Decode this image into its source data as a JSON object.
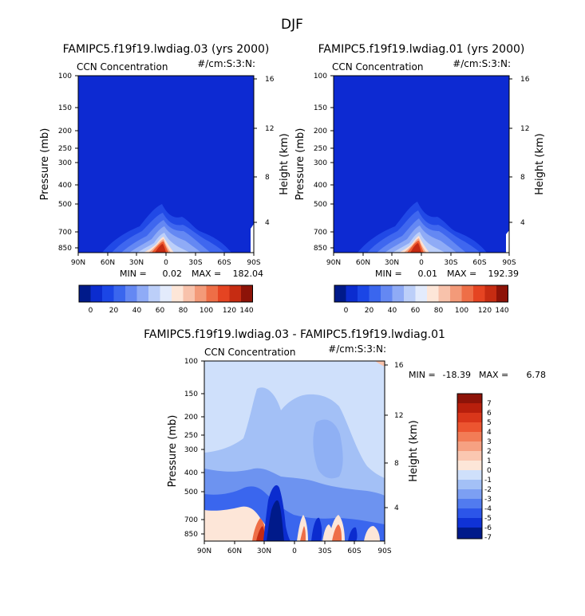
{
  "figure": {
    "title": "DJF"
  },
  "colors": {
    "deep_blue": "#0f24c8",
    "frame": "#000000"
  },
  "chart_data": [
    {
      "type": "heatmap",
      "title": "FAMIPC5.f19f19.lwdiag.03 (yrs 2000)",
      "subtitle_left": "CCN Concentration",
      "subtitle_right": "#/cm:S:3:N:",
      "xlabel": "",
      "ylabel": "Pressure (mb)",
      "y2label": "Height (km)",
      "x_ticks": [
        "90N",
        "60N",
        "30N",
        "0",
        "30S",
        "60S",
        "90S"
      ],
      "y_ticks": [
        "100",
        "150",
        "200",
        "250",
        "300",
        "400",
        "500",
        "700",
        "850"
      ],
      "y2_ticks": [
        "16",
        "12",
        "8",
        "4"
      ],
      "min_label": "MIN =",
      "min_value": "0.02",
      "max_label": "MAX =",
      "max_value": "182.04",
      "colorbar_labels": [
        "0",
        "20",
        "40",
        "60",
        "80",
        "100",
        "120",
        "140"
      ]
    },
    {
      "type": "heatmap",
      "title": "FAMIPC5.f19f19.lwdiag.01 (yrs 2000)",
      "subtitle_left": "CCN Concentration",
      "subtitle_right": "#/cm:S:3:N:",
      "xlabel": "",
      "ylabel": "Pressure (mb)",
      "y2label": "Height (km)",
      "x_ticks": [
        "90N",
        "60N",
        "30N",
        "0",
        "30S",
        "60S",
        "90S"
      ],
      "y_ticks": [
        "100",
        "150",
        "200",
        "250",
        "300",
        "400",
        "500",
        "700",
        "850"
      ],
      "y2_ticks": [
        "16",
        "12",
        "8",
        "4"
      ],
      "min_label": "MIN =",
      "min_value": "0.01",
      "max_label": "MAX =",
      "max_value": "192.39",
      "colorbar_labels": [
        "0",
        "20",
        "40",
        "60",
        "80",
        "100",
        "120",
        "140"
      ]
    },
    {
      "type": "heatmap",
      "title": "FAMIPC5.f19f19.lwdiag.03 - FAMIPC5.f19f19.lwdiag.01",
      "subtitle_left": "CCN Concentration",
      "subtitle_right": "#/cm:S:3:N:",
      "xlabel": "",
      "ylabel": "Pressure (mb)",
      "y2label": "Height (km)",
      "x_ticks": [
        "90N",
        "60N",
        "30N",
        "0",
        "30S",
        "60S",
        "90S"
      ],
      "y_ticks": [
        "100",
        "150",
        "200",
        "250",
        "300",
        "400",
        "500",
        "700",
        "850"
      ],
      "y2_ticks": [
        "16",
        "12",
        "8",
        "4"
      ],
      "min_label": "MIN =",
      "min_value": "-18.39",
      "max_label": "MAX =",
      "max_value": "6.78",
      "colorbar_labels": [
        "7",
        "6",
        "5",
        "4",
        "3",
        "2",
        "1",
        "0",
        "-1",
        "-2",
        "-3",
        "-4",
        "-5",
        "-6",
        "-7"
      ]
    }
  ]
}
